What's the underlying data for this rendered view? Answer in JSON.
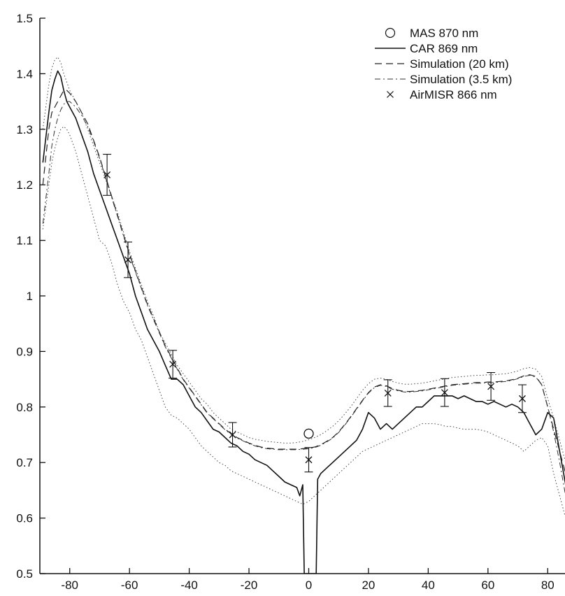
{
  "chart_data": {
    "type": "line",
    "title": "",
    "xlabel": "",
    "ylabel": "",
    "xlim": [
      -90,
      90
    ],
    "ylim": [
      0.5,
      1.5
    ],
    "grid": false,
    "legend_placement": "top-right",
    "x_ticks": [
      -80,
      -60,
      -40,
      -20,
      0,
      20,
      40,
      60,
      80
    ],
    "x_tick_labels": [
      "-80",
      "-60",
      "-40",
      "-20",
      "0",
      "20",
      "40",
      "60",
      "80"
    ],
    "y_ticks": [
      0.5,
      0.6,
      0.7,
      0.8,
      0.9,
      1.0,
      1.1,
      1.2,
      1.3,
      1.4,
      1.5
    ],
    "y_tick_labels": [
      "0.5",
      "0.6",
      "0.7",
      "0.8",
      "0.9",
      "1",
      "1.1",
      "1.2",
      "1.3",
      "1.4",
      "1.5"
    ],
    "series": [
      {
        "name": "MAS 870 nm",
        "style": "open-circle",
        "x": [
          0
        ],
        "y": [
          0.752
        ]
      },
      {
        "name": "CAR 869 nm",
        "style": "solid",
        "x": [
          -89,
          -87,
          -86,
          -85,
          -84,
          -83,
          -82,
          -81,
          -80,
          -78,
          -76,
          -74,
          -72,
          -70,
          -68,
          -66,
          -64,
          -62,
          -60,
          -58,
          -56,
          -54,
          -52,
          -50,
          -48,
          -46,
          -44,
          -42,
          -40,
          -38,
          -36,
          -34,
          -32,
          -30,
          -28,
          -26,
          -24,
          -22,
          -20,
          -18,
          -16,
          -14,
          -12,
          -10,
          -8,
          -6,
          -4,
          -3,
          -2,
          -1.5,
          2.5,
          3,
          4,
          6,
          8,
          10,
          12,
          14,
          16,
          18,
          20,
          22,
          24,
          26,
          28,
          30,
          32,
          34,
          36,
          38,
          40,
          42,
          44,
          46,
          48,
          50,
          52,
          54,
          56,
          58,
          60,
          62,
          64,
          66,
          68,
          70,
          72,
          74,
          76,
          78,
          80,
          82,
          84,
          86,
          88,
          89
        ],
        "y": [
          1.24,
          1.33,
          1.37,
          1.39,
          1.405,
          1.395,
          1.37,
          1.35,
          1.34,
          1.32,
          1.29,
          1.26,
          1.22,
          1.19,
          1.16,
          1.13,
          1.1,
          1.07,
          1.04,
          1.0,
          0.97,
          0.94,
          0.92,
          0.9,
          0.875,
          0.85,
          0.85,
          0.84,
          0.82,
          0.8,
          0.79,
          0.775,
          0.76,
          0.755,
          0.745,
          0.735,
          0.73,
          0.72,
          0.715,
          0.705,
          0.7,
          0.695,
          0.685,
          0.675,
          0.665,
          0.66,
          0.655,
          0.64,
          0.66,
          0.5,
          0.5,
          0.67,
          0.68,
          0.69,
          0.7,
          0.71,
          0.72,
          0.73,
          0.74,
          0.76,
          0.79,
          0.78,
          0.76,
          0.77,
          0.76,
          0.77,
          0.78,
          0.79,
          0.8,
          0.8,
          0.81,
          0.82,
          0.82,
          0.82,
          0.82,
          0.815,
          0.82,
          0.815,
          0.81,
          0.81,
          0.805,
          0.81,
          0.805,
          0.8,
          0.805,
          0.8,
          0.79,
          0.77,
          0.75,
          0.76,
          0.79,
          0.78,
          0.72,
          0.66,
          0.6,
          0.57
        ]
      },
      {
        "name": "Simulation (20 km)",
        "style": "dashed",
        "x": [
          -89,
          -87,
          -86,
          -85,
          -84,
          -83,
          -82,
          -81,
          -80,
          -78,
          -76,
          -74,
          -72,
          -70,
          -68,
          -66,
          -64,
          -62,
          -60,
          -58,
          -56,
          -54,
          -52,
          -50,
          -48,
          -46,
          -44,
          -42,
          -40,
          -38,
          -36,
          -34,
          -32,
          -30,
          -28,
          -26,
          -24,
          -22,
          -20,
          -18,
          -16,
          -14,
          -12,
          -10,
          -8,
          -6,
          -4,
          -2,
          0,
          2,
          4,
          6,
          8,
          10,
          12,
          14,
          16,
          18,
          20,
          22,
          24,
          26,
          28,
          30,
          32,
          34,
          36,
          38,
          40,
          42,
          44,
          46,
          48,
          50,
          52,
          54,
          56,
          58,
          60,
          62,
          64,
          66,
          68,
          70,
          72,
          74,
          76,
          78,
          80,
          82,
          84,
          86,
          88,
          89
        ],
        "y": [
          1.2,
          1.3,
          1.33,
          1.34,
          1.35,
          1.36,
          1.37,
          1.37,
          1.365,
          1.35,
          1.33,
          1.31,
          1.28,
          1.25,
          1.215,
          1.18,
          1.145,
          1.11,
          1.075,
          1.045,
          1.015,
          0.985,
          0.96,
          0.935,
          0.91,
          0.89,
          0.87,
          0.85,
          0.835,
          0.82,
          0.805,
          0.79,
          0.78,
          0.77,
          0.76,
          0.752,
          0.745,
          0.74,
          0.735,
          0.731,
          0.728,
          0.726,
          0.725,
          0.724,
          0.724,
          0.724,
          0.724,
          0.725,
          0.726,
          0.728,
          0.732,
          0.738,
          0.745,
          0.755,
          0.768,
          0.782,
          0.797,
          0.812,
          0.826,
          0.836,
          0.84,
          0.838,
          0.833,
          0.83,
          0.828,
          0.828,
          0.829,
          0.83,
          0.832,
          0.834,
          0.836,
          0.838,
          0.84,
          0.841,
          0.842,
          0.843,
          0.844,
          0.844,
          0.845,
          0.845,
          0.846,
          0.847,
          0.849,
          0.852,
          0.856,
          0.858,
          0.855,
          0.84,
          0.8,
          0.76,
          0.72,
          0.68,
          0.64,
          0.6
        ]
      },
      {
        "name": "Simulation (3.5 km)",
        "style": "dash-dot",
        "x": [
          -89,
          -87,
          -86,
          -85,
          -84,
          -83,
          -82,
          -81,
          -80,
          -78,
          -76,
          -74,
          -72,
          -70,
          -68,
          -66,
          -64,
          -62,
          -60,
          -58,
          -56,
          -54,
          -52,
          -50,
          -48,
          -46,
          -44,
          -42,
          -40,
          -38,
          -36,
          -34,
          -32,
          -30,
          -28,
          -26,
          -24,
          -22,
          -20,
          -18,
          -16,
          -14,
          -12,
          -10,
          -8,
          -6,
          -4,
          -2,
          0,
          2,
          4,
          6,
          8,
          10,
          12,
          14,
          16,
          18,
          20,
          22,
          24,
          26,
          28,
          30,
          32,
          34,
          36,
          38,
          40,
          42,
          44,
          46,
          48,
          50,
          52,
          54,
          56,
          58,
          60,
          62,
          64,
          66,
          68,
          70,
          72,
          74,
          76,
          78,
          80,
          82,
          84,
          86,
          88,
          89
        ],
        "y": [
          1.13,
          1.22,
          1.27,
          1.3,
          1.32,
          1.335,
          1.345,
          1.35,
          1.35,
          1.34,
          1.325,
          1.305,
          1.278,
          1.248,
          1.213,
          1.178,
          1.143,
          1.108,
          1.073,
          1.043,
          1.013,
          0.983,
          0.958,
          0.933,
          0.908,
          0.888,
          0.868,
          0.849,
          0.834,
          0.819,
          0.804,
          0.789,
          0.779,
          0.769,
          0.759,
          0.751,
          0.744,
          0.739,
          0.734,
          0.73,
          0.727,
          0.725,
          0.724,
          0.723,
          0.723,
          0.723,
          0.723,
          0.724,
          0.725,
          0.727,
          0.731,
          0.737,
          0.744,
          0.754,
          0.767,
          0.781,
          0.796,
          0.811,
          0.825,
          0.835,
          0.839,
          0.837,
          0.832,
          0.829,
          0.827,
          0.827,
          0.828,
          0.829,
          0.831,
          0.833,
          0.835,
          0.837,
          0.839,
          0.84,
          0.841,
          0.842,
          0.843,
          0.843,
          0.844,
          0.844,
          0.845,
          0.846,
          0.848,
          0.851,
          0.855,
          0.857,
          0.854,
          0.84,
          0.8,
          0.755,
          0.7,
          0.64,
          0.59,
          0.55
        ]
      },
      {
        "name": "AirMISR 866 nm",
        "style": "x-marker-with-errorbars",
        "x": [
          -67.5,
          -60.5,
          -45.5,
          -25.5,
          0,
          26.5,
          45.5,
          61,
          71.5
        ],
        "y": [
          1.218,
          1.065,
          0.877,
          0.75,
          0.705,
          0.825,
          0.826,
          0.837,
          0.815
        ],
        "err": [
          0.037,
          0.032,
          0.025,
          0.022,
          0.022,
          0.024,
          0.025,
          0.025,
          0.025
        ]
      },
      {
        "name": "",
        "style": "dotted-envelope-upper",
        "x": [
          -89,
          -87,
          -86,
          -85,
          -84,
          -83,
          -82,
          -81,
          -80,
          -78,
          -76,
          -74,
          -72,
          -70,
          -68,
          -66,
          -64,
          -62,
          -60,
          -58,
          -56,
          -54,
          -52,
          -50,
          -48,
          -46,
          -44,
          -42,
          -40,
          -38,
          -36,
          -34,
          -32,
          -30,
          -28,
          -26,
          -24,
          -22,
          -20,
          -18,
          -16,
          -14,
          -12,
          -10,
          -8,
          -6,
          -4,
          -2,
          0,
          2,
          4,
          6,
          8,
          10,
          12,
          14,
          16,
          18,
          20,
          22,
          24,
          26,
          28,
          30,
          32,
          34,
          36,
          38,
          40,
          42,
          44,
          46,
          48,
          50,
          52,
          54,
          56,
          58,
          60,
          62,
          64,
          66,
          68,
          70,
          72,
          74,
          76,
          78,
          80,
          82,
          84,
          86,
          88,
          89
        ],
        "y": [
          1.3,
          1.38,
          1.41,
          1.425,
          1.43,
          1.42,
          1.4,
          1.385,
          1.37,
          1.35,
          1.33,
          1.3,
          1.27,
          1.24,
          1.21,
          1.18,
          1.15,
          1.115,
          1.08,
          1.05,
          1.02,
          0.99,
          0.965,
          0.935,
          0.915,
          0.895,
          0.875,
          0.86,
          0.845,
          0.83,
          0.815,
          0.805,
          0.79,
          0.78,
          0.77,
          0.76,
          0.755,
          0.75,
          0.745,
          0.742,
          0.74,
          0.738,
          0.737,
          0.736,
          0.735,
          0.735,
          0.736,
          0.738,
          0.741,
          0.745,
          0.75,
          0.757,
          0.765,
          0.775,
          0.787,
          0.8,
          0.815,
          0.83,
          0.842,
          0.85,
          0.852,
          0.85,
          0.846,
          0.843,
          0.841,
          0.841,
          0.842,
          0.843,
          0.845,
          0.847,
          0.849,
          0.851,
          0.853,
          0.854,
          0.855,
          0.856,
          0.857,
          0.857,
          0.858,
          0.858,
          0.859,
          0.86,
          0.862,
          0.865,
          0.869,
          0.871,
          0.868,
          0.855,
          0.815,
          0.78,
          0.74,
          0.7,
          0.69,
          0.69
        ]
      },
      {
        "name": "",
        "style": "dotted-envelope-lower",
        "x": [
          -89,
          -87,
          -86,
          -85,
          -84,
          -83,
          -82,
          -81,
          -80,
          -78,
          -76,
          -74,
          -72,
          -70,
          -68,
          -66,
          -64,
          -62,
          -60,
          -58,
          -56,
          -54,
          -52,
          -50,
          -48,
          -46,
          -44,
          -42,
          -40,
          -38,
          -36,
          -34,
          -32,
          -30,
          -28,
          -26,
          -24,
          -22,
          -20,
          -18,
          -16,
          -14,
          -12,
          -10,
          -8,
          -6,
          -4,
          -2,
          0,
          2,
          4,
          6,
          8,
          10,
          12,
          14,
          16,
          18,
          20,
          22,
          24,
          26,
          28,
          30,
          32,
          34,
          36,
          38,
          40,
          42,
          44,
          46,
          48,
          50,
          52,
          54,
          56,
          58,
          60,
          62,
          64,
          66,
          68,
          70,
          72,
          74,
          76,
          78,
          80,
          82,
          84,
          86,
          88,
          89
        ],
        "y": [
          1.12,
          1.2,
          1.24,
          1.265,
          1.285,
          1.3,
          1.305,
          1.3,
          1.29,
          1.26,
          1.22,
          1.18,
          1.14,
          1.1,
          1.09,
          1.06,
          1.02,
          0.99,
          0.97,
          0.94,
          0.92,
          0.89,
          0.86,
          0.83,
          0.8,
          0.785,
          0.78,
          0.77,
          0.76,
          0.745,
          0.73,
          0.72,
          0.71,
          0.7,
          0.695,
          0.685,
          0.68,
          0.675,
          0.67,
          0.665,
          0.66,
          0.655,
          0.65,
          0.645,
          0.64,
          0.635,
          0.63,
          0.625,
          0.63,
          0.64,
          0.65,
          0.66,
          0.67,
          0.68,
          0.69,
          0.7,
          0.71,
          0.72,
          0.725,
          0.73,
          0.735,
          0.74,
          0.745,
          0.75,
          0.755,
          0.76,
          0.765,
          0.77,
          0.77,
          0.77,
          0.768,
          0.765,
          0.765,
          0.762,
          0.76,
          0.76,
          0.76,
          0.758,
          0.755,
          0.75,
          0.745,
          0.74,
          0.735,
          0.73,
          0.72,
          0.73,
          0.74,
          0.745,
          0.73,
          0.68,
          0.64,
          0.6,
          0.56,
          0.55
        ]
      }
    ]
  }
}
